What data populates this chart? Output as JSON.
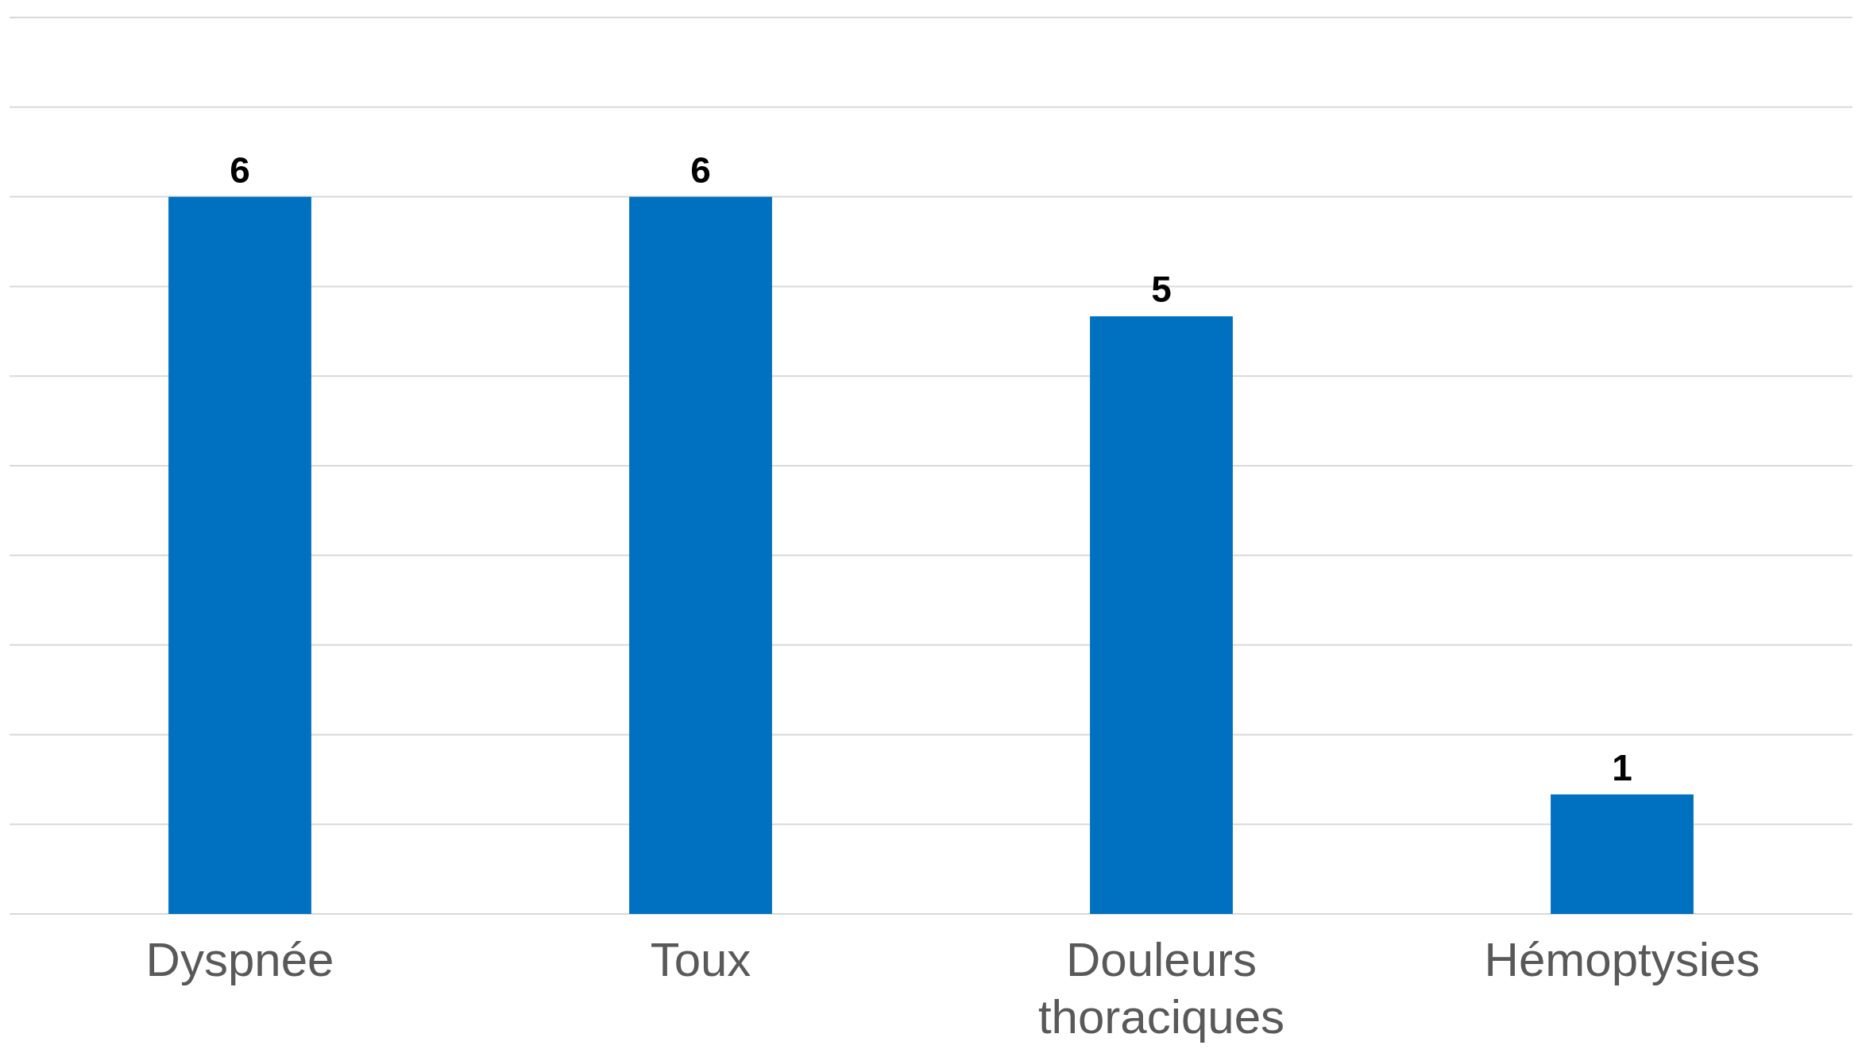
{
  "chart_data": {
    "type": "bar",
    "categories": [
      "Dyspnée",
      "Toux",
      "Douleurs thoraciques",
      "Hémoptysies"
    ],
    "values": [
      6,
      6,
      5,
      1
    ],
    "color": "#0070c0",
    "data_labels": true,
    "grid": "y",
    "tick_labels": "x",
    "ylim": [
      0,
      7.5
    ],
    "yticks": [
      {
        "value": 0,
        "label": null
      },
      {
        "value": 0.75,
        "label": null
      },
      {
        "value": 1.5,
        "label": null
      },
      {
        "value": 2.25,
        "label": null
      },
      {
        "value": 3,
        "label": null
      },
      {
        "value": 3.75,
        "label": null
      },
      {
        "value": 4.5,
        "label": null
      },
      {
        "value": 5.25,
        "label": null
      },
      {
        "value": 6,
        "label": null
      },
      {
        "value": 6.75,
        "label": null
      },
      {
        "value": 7.5,
        "label": null
      }
    ]
  }
}
